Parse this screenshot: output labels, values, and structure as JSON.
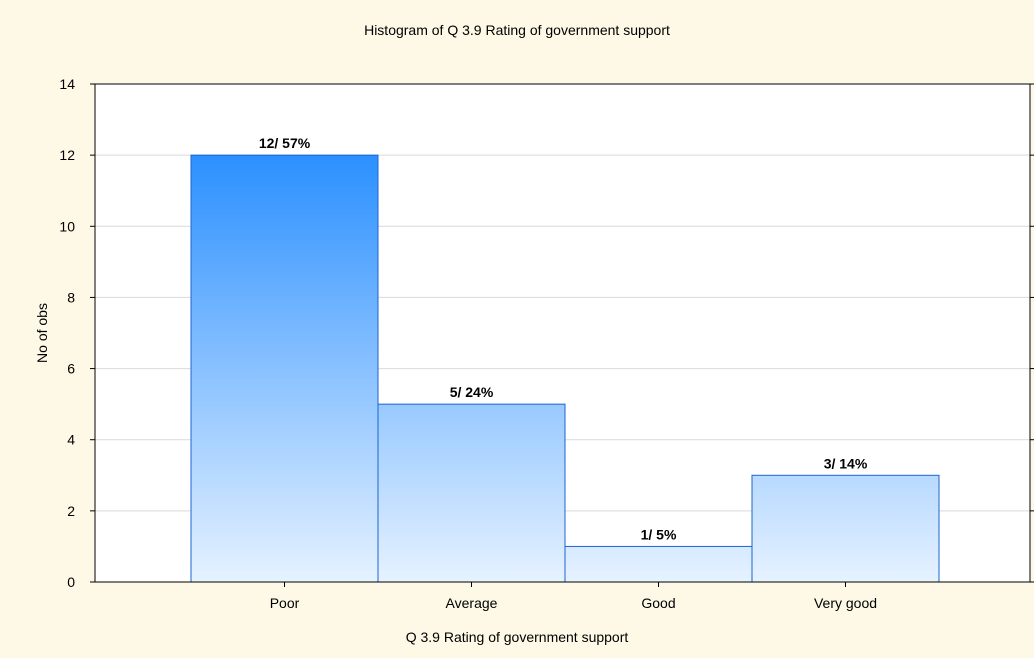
{
  "chart_data": {
    "type": "bar",
    "title": "Histogram of Q 3.9 Rating of government support",
    "xlabel": "Q 3.9 Rating of government support",
    "ylabel": "No of obs",
    "categories": [
      "Poor",
      "Average",
      "Good",
      "Very good"
    ],
    "values": [
      12,
      5,
      1,
      3
    ],
    "data_labels": [
      "12/ 57%",
      "5/ 24%",
      "1/ 5%",
      "3/ 14%"
    ],
    "ylim": [
      0,
      14
    ],
    "yticks": [
      0,
      2,
      4,
      6,
      8,
      10,
      12,
      14
    ],
    "grid": true,
    "colors": {
      "background": "#fdf9e6",
      "bar_top": "#2b90ff",
      "bar_bottom": "#e6f2ff",
      "bar_stroke": "#1e64d0",
      "grid": "#d9d9d9"
    }
  }
}
